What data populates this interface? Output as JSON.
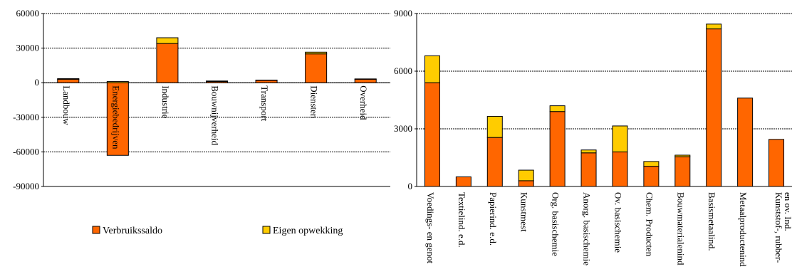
{
  "chart_data": [
    {
      "type": "bar",
      "stacked": true,
      "title": "",
      "xlabel": "",
      "ylabel": "",
      "ylim": [
        -90000,
        60000
      ],
      "yticks": [
        60000,
        30000,
        0,
        -30000,
        -60000,
        -90000
      ],
      "ytick_labels": [
        "60000",
        "30000",
        "0",
        "-30000",
        "-60000",
        "-90000"
      ],
      "grid": true,
      "legend": "bottom",
      "categories": [
        "Landbouw",
        "Energiebedrijven",
        "Industrie",
        "Bouwnijverheid",
        "Transport",
        "Diensten",
        "Overheid"
      ],
      "series": [
        {
          "name": "Verbruikssaldo",
          "color": "#ff6600",
          "values": [
            3000,
            -63000,
            34000,
            1000,
            2000,
            25000,
            3000
          ]
        },
        {
          "name": "Eigen opwekking",
          "color": "#ffcc00",
          "values": [
            500,
            1000,
            5000,
            500,
            300,
            1500,
            300
          ]
        }
      ]
    },
    {
      "type": "bar",
      "stacked": true,
      "title": "",
      "xlabel": "",
      "ylabel": "",
      "ylim": [
        0,
        9000
      ],
      "yticks": [
        0,
        3000,
        6000,
        9000
      ],
      "ytick_labels": [
        "0",
        "3000",
        "6000",
        "9000"
      ],
      "grid": true,
      "categories": [
        "Voedings- en genot",
        "Textielind. e.d.",
        "Papierind. e.d.",
        "Kunstmest",
        "Org. basischemie",
        "Anorg. basischemie",
        "Ov. basischemie",
        "Chem. Producten",
        "Bouwmaterialenind",
        "Basismetaalind.",
        "Metaalproductenind",
        "Kunststof-, rubber- en ov. Ind."
      ],
      "category_lines": [
        [
          "Voedings- en genot"
        ],
        [
          "Textielind. e.d."
        ],
        [
          "Papierind. e.d."
        ],
        [
          "Kunstmest"
        ],
        [
          "Org. basischemie"
        ],
        [
          "Anorg. basischemie"
        ],
        [
          "Ov. basischemie"
        ],
        [
          "Chem. Producten"
        ],
        [
          "Bouwmaterialenind"
        ],
        [
          "Basismetaalind."
        ],
        [
          "Metaalproductenind"
        ],
        [
          "Kunststof-, rubber-",
          "en ov. Ind."
        ]
      ],
      "series": [
        {
          "name": "Verbruikssaldo",
          "color": "#ff6600",
          "values": [
            5400,
            500,
            2550,
            300,
            3900,
            1750,
            1800,
            1050,
            1550,
            8200,
            4600,
            2450
          ]
        },
        {
          "name": "Eigen opwekking",
          "color": "#ffcc00",
          "values": [
            1400,
            0,
            1100,
            550,
            300,
            150,
            1350,
            250,
            80,
            250,
            0,
            0
          ]
        }
      ]
    }
  ],
  "legend": {
    "items": [
      {
        "label": "Verbruikssaldo",
        "color": "#ff6600"
      },
      {
        "label": "Eigen opwekking",
        "color": "#ffcc00"
      }
    ]
  }
}
